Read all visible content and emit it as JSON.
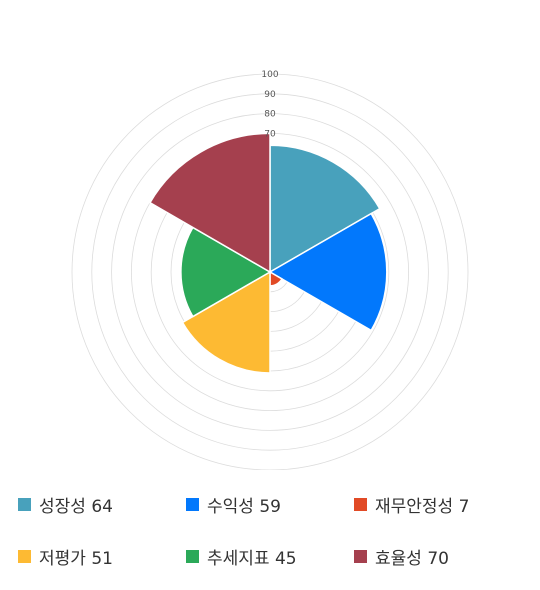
{
  "chart_data": {
    "type": "polar-area",
    "title": "",
    "rmax": 100,
    "radial_ticks": [
      "70",
      "80",
      "90",
      "100"
    ],
    "grid_levels": [
      10,
      20,
      30,
      40,
      50,
      60,
      70,
      80,
      90,
      100
    ],
    "series": [
      {
        "name": "성장성",
        "value": 64,
        "color": "#48A1BC"
      },
      {
        "name": "수익성",
        "value": 59,
        "color": "#0278FC"
      },
      {
        "name": "재무안정성",
        "value": 7,
        "color": "#E14A26"
      },
      {
        "name": "저평가",
        "value": 51,
        "color": "#FDBA33"
      },
      {
        "name": "추세지표",
        "value": 45,
        "color": "#2BA959"
      },
      {
        "name": "효율성",
        "value": 70,
        "color": "#A5404E"
      }
    ]
  },
  "legend": {
    "items": [
      {
        "label": "성장성 64",
        "color": "#48A1BC"
      },
      {
        "label": "수익성 59",
        "color": "#0278FC"
      },
      {
        "label": "재무안정성 7",
        "color": "#E14A26"
      },
      {
        "label": "저평가 51",
        "color": "#FDBA33"
      },
      {
        "label": "추세지표 45",
        "color": "#2BA959"
      },
      {
        "label": "효율성 70",
        "color": "#A5404E"
      }
    ]
  }
}
